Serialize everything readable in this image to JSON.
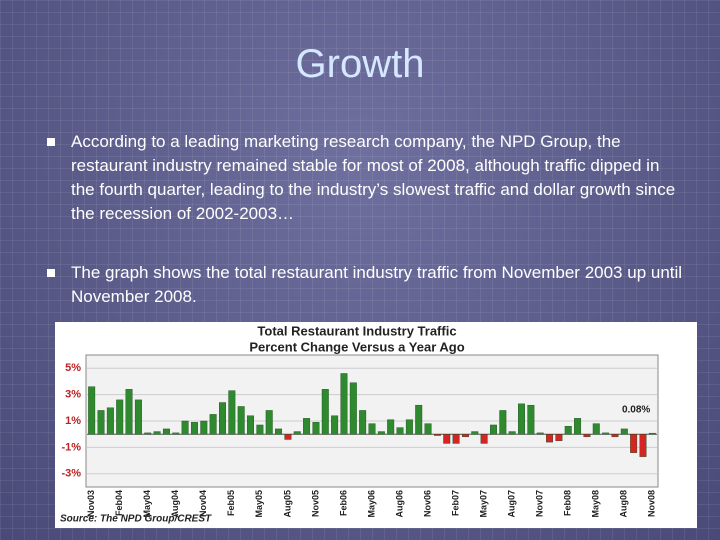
{
  "title": "Growth",
  "bullets": [
    "According to a leading marketing research company, the NPD Group, the restaurant industry remained stable for most of 2008, although traffic dipped in the fourth quarter, leading to the industry’s slowest traffic and dollar growth since the recession of 2002-2003…",
    "The graph shows the total restaurant industry traffic from November 2003 up until November 2008."
  ],
  "chart_data": {
    "type": "bar",
    "title": "Total Restaurant Industry Traffic",
    "subtitle": "Percent Change Versus a Year Ago",
    "source": "Source: The NPD Group/CREST",
    "annotation": "0.08%",
    "categories": [
      "Nov03",
      null,
      null,
      "Feb04",
      null,
      null,
      "May04",
      null,
      null,
      "Aug04",
      null,
      null,
      "Nov04",
      null,
      null,
      "Feb05",
      null,
      null,
      "May05",
      null,
      null,
      "Aug05",
      null,
      null,
      "Nov05",
      null,
      null,
      "Feb06",
      null,
      null,
      "May06",
      null,
      null,
      "Aug06",
      null,
      null,
      "Nov06",
      null,
      null,
      "Feb07",
      null,
      null,
      "May07",
      null,
      null,
      "Aug07",
      null,
      null,
      "Nov07",
      null,
      null,
      "Feb08",
      null,
      null,
      "May08",
      null,
      null,
      "Aug08",
      null,
      null,
      "Nov08"
    ],
    "values": [
      3.6,
      1.8,
      2.0,
      2.6,
      3.4,
      2.6,
      0.1,
      0.2,
      0.4,
      0.1,
      1.0,
      0.9,
      1.0,
      1.5,
      2.4,
      3.3,
      2.1,
      1.4,
      0.7,
      1.8,
      0.4,
      -0.4,
      0.2,
      1.2,
      0.9,
      3.4,
      1.4,
      4.6,
      3.9,
      1.8,
      0.8,
      0.2,
      1.1,
      0.5,
      1.1,
      2.2,
      0.8,
      -0.1,
      -0.7,
      -0.7,
      -0.2,
      0.2,
      -0.7,
      0.7,
      1.8,
      0.2,
      2.3,
      2.2,
      0.1,
      -0.6,
      -0.5,
      0.6,
      1.2,
      -0.2,
      0.8,
      0.1,
      -0.2,
      0.4,
      -1.4,
      -1.7,
      0.08
    ],
    "color": "#2f8a2f",
    "negative_color": "#d42424",
    "ylim": [
      -4,
      6
    ],
    "yticks": [
      {
        "value": 5,
        "label": "5%"
      },
      {
        "value": 3,
        "label": "3%"
      },
      {
        "value": 1,
        "label": "1%"
      },
      {
        "value": -1,
        "label": "-1%"
      },
      {
        "value": -3,
        "label": "-3%"
      }
    ],
    "grid": true
  }
}
